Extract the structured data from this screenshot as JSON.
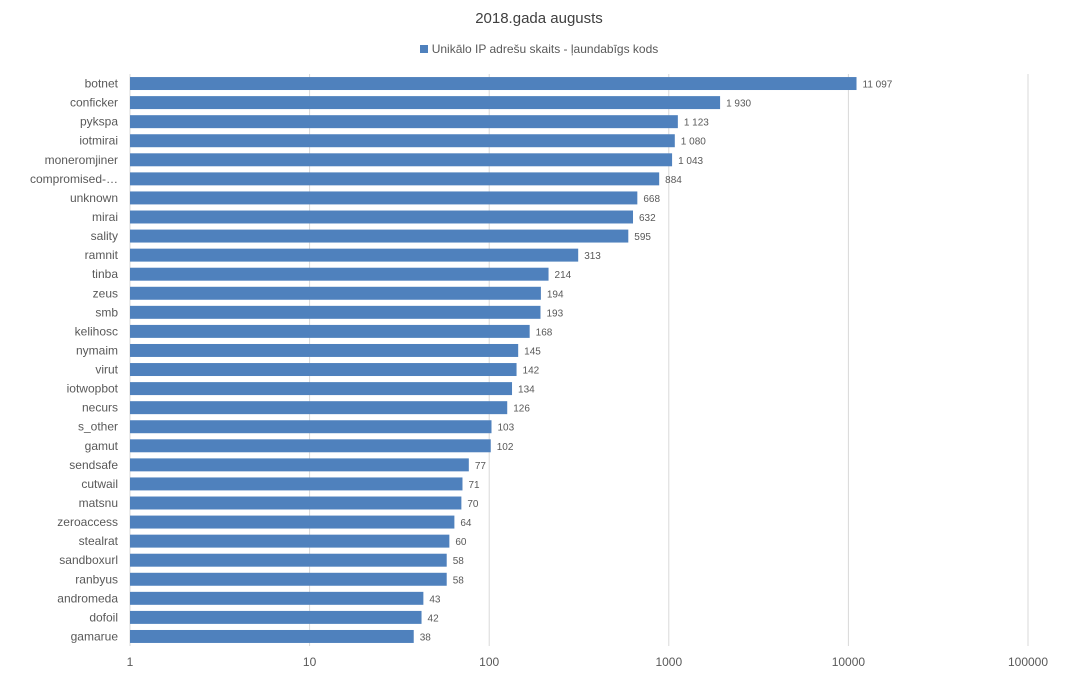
{
  "chart_data": {
    "type": "bar",
    "orientation": "horizontal",
    "title": "2018.gada augusts",
    "x_scale": "log",
    "xlim": [
      1,
      100000
    ],
    "x_ticks": [
      "1",
      "10",
      "100",
      "1000",
      "10000",
      "100000"
    ],
    "grid": true,
    "legend_position": "top",
    "series": [
      {
        "name": "Unikālo IP adrešu skaits -  ļaundabīgs kods",
        "color": "#4f81bd",
        "values": [
          11097,
          1930,
          1123,
          1080,
          1043,
          884,
          668,
          632,
          595,
          313,
          214,
          194,
          193,
          168,
          145,
          142,
          134,
          126,
          103,
          102,
          77,
          71,
          70,
          64,
          60,
          58,
          58,
          43,
          42,
          38
        ],
        "data_labels": [
          "11 097",
          "1 930",
          "1 123",
          "1 080",
          "1 043",
          "884",
          "668",
          "632",
          "595",
          "313",
          "214",
          "194",
          "193",
          "168",
          "145",
          "142",
          "134",
          "126",
          "103",
          "102",
          "77",
          "71",
          "70",
          "64",
          "60",
          "58",
          "58",
          "43",
          "42",
          "38"
        ]
      }
    ],
    "categories": [
      "botnet",
      "conficker",
      "pykspa",
      "iotmirai",
      "moneromjiner",
      "compromised-…",
      "unknown",
      "mirai",
      "sality",
      "ramnit",
      "tinba",
      "zeus",
      "smb",
      "kelihosc",
      "nymaim",
      "virut",
      "iotwopbot",
      "necurs",
      "s_other",
      "gamut",
      "sendsafe",
      "cutwail",
      "matsnu",
      "zeroaccess",
      "stealrat",
      "sandboxurl",
      "ranbyus",
      "andromeda",
      "dofoil",
      "gamarue"
    ]
  }
}
